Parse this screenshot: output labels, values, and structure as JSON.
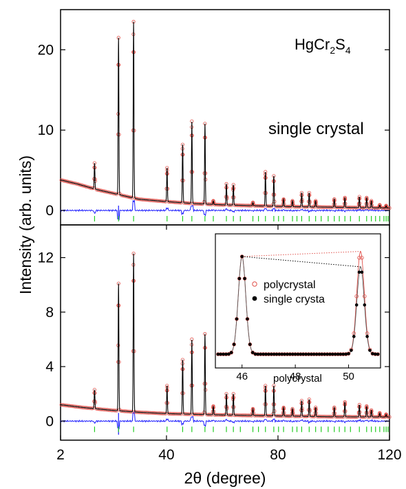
{
  "figure": {
    "ylabel": "Intensity (arb. units)",
    "xlabel": "2θ (degree)",
    "x_ticks": [
      "2",
      "40",
      "80",
      "120"
    ]
  },
  "colors": {
    "observed": "#e0504a",
    "calculated": "#000000",
    "difference": "#1a1aff",
    "bragg": "#22cc22"
  },
  "chart_data": [
    {
      "type": "scatter",
      "panel": "top",
      "sample": "single crystal",
      "compound": {
        "base": "HgCr",
        "sub1": "2",
        "mid": "S",
        "sub2": "4"
      },
      "xlim": [
        2,
        120
      ],
      "ylim": [
        -1.8,
        25
      ],
      "y_ticks": [
        "0",
        "10",
        "20"
      ],
      "y_tick_values": [
        0,
        10,
        20
      ],
      "background": [
        [
          2,
          3.8
        ],
        [
          8,
          3.3
        ],
        [
          15,
          2.6
        ],
        [
          20,
          2.2
        ],
        [
          25,
          1.8
        ],
        [
          30,
          1.4
        ],
        [
          40,
          1.1
        ],
        [
          50,
          0.85
        ],
        [
          60,
          0.7
        ],
        [
          80,
          0.5
        ],
        [
          100,
          0.4
        ],
        [
          120,
          0.3
        ]
      ],
      "peaks": [
        [
          14.2,
          5.9
        ],
        [
          22.8,
          21.5
        ],
        [
          28.2,
          23.5
        ],
        [
          40.2,
          5.3
        ],
        [
          45.8,
          8.2
        ],
        [
          49.1,
          11.1
        ],
        [
          53.8,
          10.8
        ],
        [
          56.8,
          1.2
        ],
        [
          61.5,
          3.3
        ],
        [
          64.0,
          3.2
        ],
        [
          71.0,
          1.0
        ],
        [
          75.5,
          4.8
        ],
        [
          78.5,
          4.3
        ],
        [
          82.0,
          1.4
        ],
        [
          85.2,
          1.2
        ],
        [
          88.5,
          2.2
        ],
        [
          91.2,
          2.2
        ],
        [
          93.5,
          1.2
        ],
        [
          100.2,
          1.4
        ],
        [
          104.0,
          1.6
        ],
        [
          109.2,
          1.7
        ],
        [
          111.8,
          1.6
        ],
        [
          113.5,
          1.2
        ],
        [
          116.5,
          0.7
        ],
        [
          118.8,
          0.6
        ]
      ],
      "bragg_ticks": [
        14.2,
        22.8,
        28.2,
        40.2,
        45.8,
        49.1,
        53.8,
        56.8,
        61.5,
        64.0,
        66.5,
        71.0,
        73.0,
        75.5,
        78.5,
        80.2,
        82.0,
        85.2,
        86.8,
        88.5,
        91.2,
        93.5,
        95.5,
        98.0,
        100.2,
        102.0,
        104.0,
        106.0,
        109.2,
        111.8,
        113.5,
        115.0,
        116.5,
        118.0,
        118.8,
        119.5
      ]
    },
    {
      "type": "scatter",
      "panel": "bottom",
      "sample": "polycrystal",
      "xlim": [
        2,
        120
      ],
      "ylim": [
        -1.4,
        14.4
      ],
      "y_ticks": [
        "0",
        "4",
        "8",
        "12"
      ],
      "y_tick_values": [
        0,
        4,
        8,
        12
      ],
      "background": [
        [
          2,
          1.2
        ],
        [
          10,
          1.0
        ],
        [
          20,
          0.8
        ],
        [
          30,
          0.65
        ],
        [
          40,
          0.55
        ],
        [
          60,
          0.45
        ],
        [
          80,
          0.38
        ],
        [
          100,
          0.32
        ],
        [
          120,
          0.3
        ]
      ],
      "peaks": [
        [
          14.2,
          2.3
        ],
        [
          22.8,
          10.1
        ],
        [
          28.2,
          12.3
        ],
        [
          40.2,
          2.6
        ],
        [
          45.8,
          4.5
        ],
        [
          49.1,
          6.0
        ],
        [
          53.8,
          6.4
        ],
        [
          56.8,
          1.1
        ],
        [
          61.5,
          2.0
        ],
        [
          64.0,
          2.0
        ],
        [
          71.0,
          0.9
        ],
        [
          75.5,
          2.6
        ],
        [
          78.5,
          2.6
        ],
        [
          82.0,
          1.0
        ],
        [
          85.2,
          0.9
        ],
        [
          88.5,
          1.5
        ],
        [
          91.2,
          1.6
        ],
        [
          93.5,
          1.0
        ],
        [
          100.2,
          1.0
        ],
        [
          104.0,
          1.4
        ],
        [
          109.2,
          1.2
        ],
        [
          111.8,
          1.1
        ],
        [
          113.5,
          0.8
        ],
        [
          116.5,
          0.6
        ],
        [
          118.8,
          0.5
        ]
      ],
      "bragg_ticks": [
        14.2,
        22.8,
        28.2,
        40.2,
        45.8,
        49.1,
        53.8,
        56.8,
        61.5,
        64.0,
        66.5,
        71.0,
        73.0,
        75.5,
        78.5,
        80.2,
        82.0,
        85.2,
        86.8,
        88.5,
        91.2,
        93.5,
        95.5,
        98.0,
        100.2,
        102.0,
        104.0,
        106.0,
        109.2,
        111.8,
        113.5,
        115.0,
        116.5,
        118.0,
        118.8,
        119.5
      ]
    },
    {
      "type": "scatter",
      "panel": "inset",
      "xlim": [
        45,
        51.2
      ],
      "x_ticks": [
        "46",
        "48",
        "50"
      ],
      "x_tick_values": [
        46,
        48,
        50
      ],
      "xlabel": "polycrystal",
      "series": [
        {
          "name": "polycrystal",
          "marker": "open-circle",
          "peaks": [
            [
              46.0,
              0.95,
              0.14
            ],
            [
              50.45,
              1.0,
              0.14
            ]
          ]
        },
        {
          "name": "single crysta",
          "marker": "filled-circle",
          "peaks": [
            [
              46.0,
              0.95,
              0.14
            ],
            [
              50.45,
              0.85,
              0.14
            ]
          ]
        }
      ]
    }
  ]
}
